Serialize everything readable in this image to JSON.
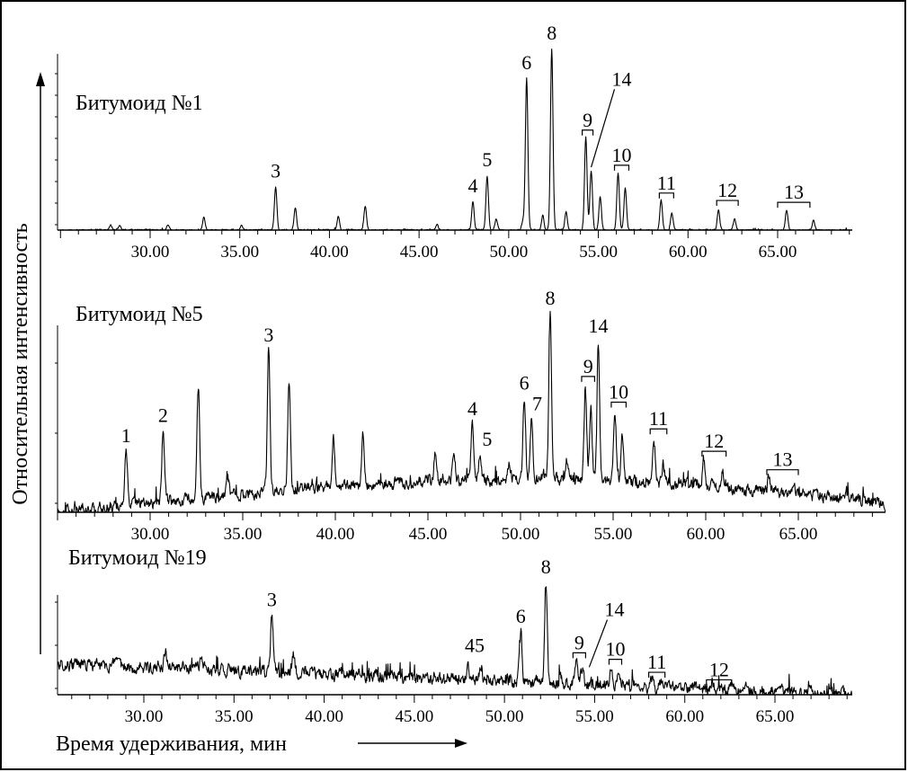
{
  "x_axis_label": "Время удерживания, мин",
  "y_axis_label": "Относительная интенсивность",
  "chart_data": [
    {
      "type": "line",
      "title": "Битумоид №1",
      "xlim": [
        25,
        70
      ],
      "ticks": [
        "30.00",
        "35.00",
        "40.00",
        "45.00",
        "50.00",
        "55.00",
        "60.00",
        "65.00"
      ],
      "baseline": {
        "type": "flat",
        "level": 0.0,
        "noise": 0.004
      },
      "peaks": [
        {
          "x": 27.8,
          "h": 0.03
        },
        {
          "x": 28.3,
          "h": 0.025
        },
        {
          "x": 31.0,
          "h": 0.03
        },
        {
          "x": 33.0,
          "h": 0.07
        },
        {
          "x": 35.1,
          "h": 0.03
        },
        {
          "x": 37.0,
          "h": 0.235
        },
        {
          "x": 38.1,
          "h": 0.12
        },
        {
          "x": 40.5,
          "h": 0.07
        },
        {
          "x": 42.0,
          "h": 0.13
        },
        {
          "x": 46.0,
          "h": 0.03
        },
        {
          "x": 48.0,
          "h": 0.155
        },
        {
          "x": 48.8,
          "h": 0.295
        },
        {
          "x": 49.3,
          "h": 0.06
        },
        {
          "x": 50.8,
          "h": 0.05
        },
        {
          "x": 51.0,
          "h": 0.82
        },
        {
          "x": 51.9,
          "h": 0.08
        },
        {
          "x": 52.4,
          "h": 0.98
        },
        {
          "x": 53.2,
          "h": 0.1
        },
        {
          "x": 54.3,
          "h": 0.5
        },
        {
          "x": 54.6,
          "h": 0.32
        },
        {
          "x": 55.1,
          "h": 0.18
        },
        {
          "x": 56.1,
          "h": 0.31
        },
        {
          "x": 56.5,
          "h": 0.23
        },
        {
          "x": 58.5,
          "h": 0.16
        },
        {
          "x": 59.1,
          "h": 0.09
        },
        {
          "x": 61.7,
          "h": 0.11
        },
        {
          "x": 62.6,
          "h": 0.06
        },
        {
          "x": 65.5,
          "h": 0.11
        },
        {
          "x": 67.0,
          "h": 0.05
        }
      ],
      "peak_labels": [
        {
          "label": "3",
          "x": 37.0,
          "h": 0.235
        },
        {
          "label": "4",
          "x": 48.0,
          "h": 0.155
        },
        {
          "label": "5",
          "x": 48.8,
          "h": 0.295
        },
        {
          "label": "6",
          "x": 51.0,
          "h": 0.82
        },
        {
          "label": "8",
          "x": 52.4,
          "h": 0.98
        }
      ],
      "bracket_labels": [
        {
          "label": "9",
          "x1": 54.1,
          "x2": 54.7,
          "h": 0.54
        },
        {
          "label": "10",
          "x1": 55.9,
          "x2": 56.7,
          "h": 0.35
        },
        {
          "label": "11",
          "x1": 58.4,
          "x2": 59.2,
          "h": 0.2
        },
        {
          "label": "12",
          "x1": 61.6,
          "x2": 62.8,
          "h": 0.16
        },
        {
          "label": "13",
          "x1": 65.0,
          "x2": 66.8,
          "h": 0.15
        }
      ],
      "leader_labels": [
        {
          "label": "14",
          "x": 54.6,
          "h": 0.32,
          "tx": 56.3,
          "th": 0.78
        }
      ]
    },
    {
      "type": "line",
      "title": "Битумоид №5",
      "xlim": [
        25,
        70
      ],
      "ticks": [
        "30.00",
        "35.00",
        "40.00",
        "45.00",
        "50.00",
        "55.00",
        "60.00",
        "65.00"
      ],
      "baseline": {
        "type": "hump",
        "start": 0.0,
        "peak": 0.16,
        "peak_x": 51,
        "end": 0.04,
        "noise": 0.028
      },
      "peaks": [
        {
          "x": 28.7,
          "h": 0.26
        },
        {
          "x": 30.7,
          "h": 0.34
        },
        {
          "x": 32.6,
          "h": 0.55
        },
        {
          "x": 34.2,
          "h": 0.08
        },
        {
          "x": 36.4,
          "h": 0.68
        },
        {
          "x": 37.5,
          "h": 0.54
        },
        {
          "x": 38.7,
          "h": 0.04
        },
        {
          "x": 39.9,
          "h": 0.25
        },
        {
          "x": 41.5,
          "h": 0.25
        },
        {
          "x": 45.4,
          "h": 0.13
        },
        {
          "x": 46.4,
          "h": 0.15
        },
        {
          "x": 47.4,
          "h": 0.27
        },
        {
          "x": 47.8,
          "h": 0.1
        },
        {
          "x": 49.4,
          "h": 0.08
        },
        {
          "x": 50.2,
          "h": 0.39
        },
        {
          "x": 50.6,
          "h": 0.29
        },
        {
          "x": 51.6,
          "h": 0.8
        },
        {
          "x": 52.5,
          "h": 0.1
        },
        {
          "x": 53.5,
          "h": 0.46
        },
        {
          "x": 53.8,
          "h": 0.34
        },
        {
          "x": 54.2,
          "h": 0.67
        },
        {
          "x": 55.1,
          "h": 0.34
        },
        {
          "x": 55.5,
          "h": 0.23
        },
        {
          "x": 57.2,
          "h": 0.22
        },
        {
          "x": 57.7,
          "h": 0.1
        },
        {
          "x": 59.9,
          "h": 0.13
        },
        {
          "x": 60.9,
          "h": 0.07
        },
        {
          "x": 63.4,
          "h": 0.06
        },
        {
          "x": 64.8,
          "h": 0.03
        }
      ],
      "peak_labels": [
        {
          "label": "1",
          "x": 28.7,
          "h": 0.26
        },
        {
          "label": "2",
          "x": 30.7,
          "h": 0.34
        },
        {
          "label": "3",
          "x": 36.4,
          "h": 0.68
        },
        {
          "label": "4",
          "x": 47.4,
          "h": 0.27
        },
        {
          "label": "5",
          "x": 48.2,
          "h": 0.12
        },
        {
          "label": "6",
          "x": 50.2,
          "h": 0.39
        },
        {
          "label": "7",
          "x": 50.9,
          "h": 0.29
        },
        {
          "label": "8",
          "x": 51.6,
          "h": 0.8
        },
        {
          "label": "14",
          "x": 54.2,
          "h": 0.67
        }
      ],
      "bracket_labels": [
        {
          "label": "9",
          "x1": 53.3,
          "x2": 54.0,
          "h": 0.5
        },
        {
          "label": "10",
          "x1": 54.9,
          "x2": 55.7,
          "h": 0.38
        },
        {
          "label": "11",
          "x1": 57.0,
          "x2": 57.9,
          "h": 0.26
        },
        {
          "label": "12",
          "x1": 59.8,
          "x2": 61.1,
          "h": 0.17
        },
        {
          "label": "13",
          "x1": 63.3,
          "x2": 65.0,
          "h": 0.11
        }
      ],
      "leader_labels": []
    },
    {
      "type": "line",
      "title": "Битумоид №19",
      "xlim": [
        25,
        70
      ],
      "ticks": [
        "30.00",
        "35.00",
        "40.00",
        "45.00",
        "50.00",
        "55.00",
        "60.00",
        "65.00"
      ],
      "baseline": {
        "type": "slope",
        "start": 0.3,
        "end": 0.0,
        "noise": 0.06
      },
      "peaks": [
        {
          "x": 31.2,
          "h": 0.16
        },
        {
          "x": 33.2,
          "h": 0.14
        },
        {
          "x": 37.1,
          "h": 0.55
        },
        {
          "x": 38.3,
          "h": 0.2
        },
        {
          "x": 41.9,
          "h": 0.08
        },
        {
          "x": 48.0,
          "h": 0.12
        },
        {
          "x": 48.7,
          "h": 0.16
        },
        {
          "x": 50.9,
          "h": 0.48
        },
        {
          "x": 52.3,
          "h": 0.97
        },
        {
          "x": 53.1,
          "h": 0.08
        },
        {
          "x": 54.0,
          "h": 0.24
        },
        {
          "x": 54.3,
          "h": 0.16
        },
        {
          "x": 55.9,
          "h": 0.2
        },
        {
          "x": 56.3,
          "h": 0.15
        },
        {
          "x": 58.2,
          "h": 0.1
        },
        {
          "x": 58.7,
          "h": 0.06
        },
        {
          "x": 61.5,
          "h": 0.05
        },
        {
          "x": 62.6,
          "h": 0.04
        }
      ],
      "peak_labels": [
        {
          "label": "3",
          "x": 37.1,
          "h": 0.55
        },
        {
          "label": "45",
          "x": 48.35,
          "h": 0.18
        },
        {
          "label": "6",
          "x": 50.9,
          "h": 0.48
        },
        {
          "label": "8",
          "x": 52.3,
          "h": 0.97
        }
      ],
      "bracket_labels": [
        {
          "label": "9",
          "x1": 53.8,
          "x2": 54.5,
          "h": 0.3
        },
        {
          "label": "10",
          "x1": 55.8,
          "x2": 56.5,
          "h": 0.25
        },
        {
          "label": "11",
          "x1": 58.0,
          "x2": 58.9,
          "h": 0.14
        },
        {
          "label": "12",
          "x1": 61.2,
          "x2": 62.6,
          "h": 0.09
        }
      ],
      "leader_labels": [
        {
          "label": "14",
          "x": 54.7,
          "h": 0.13,
          "tx": 56.1,
          "th": 0.76
        }
      ]
    }
  ]
}
